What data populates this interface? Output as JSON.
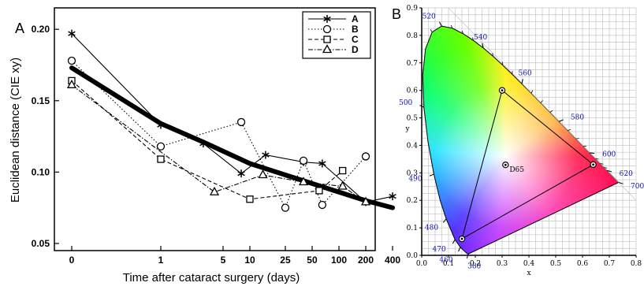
{
  "panel_a_label": "A",
  "panel_b_label": "B",
  "chart_data": [
    {
      "type": "line",
      "title": "",
      "xlabel": "Time after cataract surgery (days)",
      "ylabel": "Euclidean distance (CIE xy)",
      "x_scale": "log-like",
      "x_ticks": [
        0,
        1,
        5,
        10,
        25,
        50,
        100,
        200,
        400
      ],
      "y_ticks": [
        0.05,
        0.1,
        0.15,
        0.2
      ],
      "ylim": [
        0.045,
        0.215
      ],
      "legend_position": "top-right",
      "series": [
        {
          "name": "A",
          "marker": "asterisk",
          "line": "solid",
          "x": [
            0,
            1,
            3,
            8,
            15,
            40,
            65,
            200,
            400
          ],
          "y": [
            0.197,
            0.133,
            0.12,
            0.099,
            0.112,
            0.107,
            0.106,
            0.079,
            0.083
          ]
        },
        {
          "name": "B",
          "marker": "circle",
          "line": "dotted",
          "x": [
            0,
            1,
            8,
            25,
            40,
            65,
            200
          ],
          "y": [
            0.178,
            0.118,
            0.135,
            0.075,
            0.108,
            0.077,
            0.111
          ]
        },
        {
          "name": "C",
          "marker": "square",
          "line": "dashed",
          "x": [
            0,
            1,
            10,
            60,
            110
          ],
          "y": [
            0.164,
            0.109,
            0.081,
            0.087,
            0.101
          ]
        },
        {
          "name": "D",
          "marker": "triangle",
          "line": "dashdot",
          "x": [
            0,
            4,
            14,
            40,
            110,
            200
          ],
          "y": [
            0.161,
            0.086,
            0.098,
            0.093,
            0.09,
            0.079
          ]
        },
        {
          "marker": "none",
          "line": "thick-fit",
          "x": [
            0,
            1,
            3,
            10,
            25,
            50,
            100,
            200,
            400
          ],
          "y": [
            0.173,
            0.134,
            0.121,
            0.106,
            0.098,
            0.092,
            0.086,
            0.08,
            0.075
          ]
        }
      ]
    },
    {
      "type": "scatter",
      "title": "",
      "xlabel": "x",
      "ylabel": "y",
      "xlim": [
        0,
        0.8
      ],
      "ylim": [
        0,
        0.9
      ],
      "x_ticks": [
        "0.0",
        "0.1",
        "0.2",
        "0.3",
        "0.4",
        "0.5",
        "0.6",
        "0.7",
        "0.8"
      ],
      "y_ticks": [
        "0.0",
        "0.1",
        "0.2",
        "0.3",
        "0.4",
        "0.5",
        "0.6",
        "0.7",
        "0.8",
        "0.9"
      ],
      "grid": true,
      "spectral_locus": [
        [
          0.1741,
          0.005
        ],
        [
          0.1738,
          0.0049
        ],
        [
          0.1736,
          0.0049
        ],
        [
          0.1733,
          0.0048
        ],
        [
          0.1726,
          0.0048
        ],
        [
          0.1714,
          0.0051
        ],
        [
          0.1689,
          0.0069
        ],
        [
          0.1644,
          0.0109
        ],
        [
          0.1566,
          0.0177
        ],
        [
          0.144,
          0.0297
        ],
        [
          0.1241,
          0.0578
        ],
        [
          0.0913,
          0.1327
        ],
        [
          0.0687,
          0.2007
        ],
        [
          0.0454,
          0.295
        ],
        [
          0.0235,
          0.4127
        ],
        [
          0.0082,
          0.5384
        ],
        [
          0.0039,
          0.6548
        ],
        [
          0.0139,
          0.7502
        ],
        [
          0.0389,
          0.812
        ],
        [
          0.0743,
          0.8338
        ],
        [
          0.1142,
          0.8262
        ],
        [
          0.1547,
          0.8059
        ],
        [
          0.1929,
          0.7816
        ],
        [
          0.2296,
          0.7543
        ],
        [
          0.2658,
          0.7243
        ],
        [
          0.3016,
          0.6923
        ],
        [
          0.3373,
          0.6589
        ],
        [
          0.3731,
          0.6245
        ],
        [
          0.4087,
          0.5896
        ],
        [
          0.4441,
          0.5547
        ],
        [
          0.4788,
          0.5202
        ],
        [
          0.5125,
          0.4866
        ],
        [
          0.5448,
          0.4544
        ],
        [
          0.5752,
          0.4242
        ],
        [
          0.6029,
          0.3965
        ],
        [
          0.627,
          0.3725
        ],
        [
          0.6482,
          0.3514
        ],
        [
          0.6658,
          0.334
        ],
        [
          0.6801,
          0.3197
        ],
        [
          0.6915,
          0.3083
        ],
        [
          0.7006,
          0.2993
        ],
        [
          0.7079,
          0.292
        ],
        [
          0.714,
          0.2859
        ],
        [
          0.719,
          0.2809
        ],
        [
          0.723,
          0.277
        ],
        [
          0.726,
          0.274
        ],
        [
          0.7283,
          0.2717
        ],
        [
          0.73,
          0.27
        ],
        [
          0.7311,
          0.2689
        ],
        [
          0.732,
          0.268
        ],
        [
          0.7327,
          0.2673
        ],
        [
          0.7334,
          0.2666
        ],
        [
          0.734,
          0.266
        ],
        [
          0.7344,
          0.2656
        ],
        [
          0.7346,
          0.2654
        ],
        [
          0.7347,
          0.2653
        ]
      ],
      "wavelength_labels": [
        {
          "label": "380",
          "x": 0.1741,
          "y": 0.005
        },
        {
          "label": "460",
          "x": 0.144,
          "y": 0.0297
        },
        {
          "label": "470",
          "x": 0.1241,
          "y": 0.0578
        },
        {
          "label": "480",
          "x": 0.0913,
          "y": 0.1327
        },
        {
          "label": "490",
          "x": 0.0454,
          "y": 0.295
        },
        {
          "label": "500",
          "x": 0.0082,
          "y": 0.5384
        },
        {
          "label": "520",
          "x": 0.0743,
          "y": 0.8338
        },
        {
          "label": "540",
          "x": 0.2296,
          "y": 0.7543
        },
        {
          "label": "560",
          "x": 0.3731,
          "y": 0.6245
        },
        {
          "label": "580",
          "x": 0.5125,
          "y": 0.4866
        },
        {
          "label": "600",
          "x": 0.627,
          "y": 0.3725
        },
        {
          "label": "620",
          "x": 0.6915,
          "y": 0.3083
        },
        {
          "label": "700",
          "x": 0.7347,
          "y": 0.2653
        }
      ],
      "gamut_triangle": [
        [
          0.64,
          0.33
        ],
        [
          0.3,
          0.6
        ],
        [
          0.15,
          0.06
        ]
      ],
      "white_point": {
        "label": "D65",
        "x": 0.3127,
        "y": 0.329
      }
    }
  ]
}
